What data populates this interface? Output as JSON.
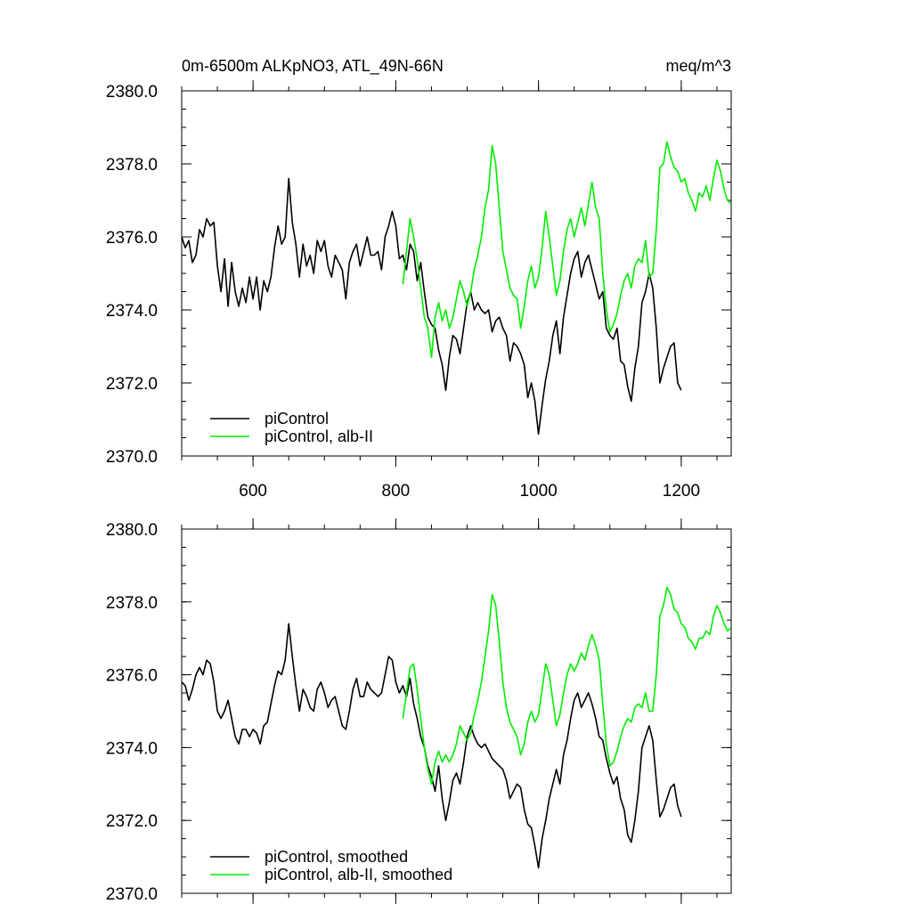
{
  "figure": {
    "title_left": "0m-6500m ALKpNO3, ATL_49N-66N",
    "title_right": "meq/m^3"
  },
  "colors": {
    "control": "#000000",
    "alb": "#00ee00"
  },
  "chart_data": [
    {
      "type": "line",
      "title": "0m-6500m ALKpNO3, ATL_49N-66N",
      "units": "meq/m^3",
      "xlim": [
        500,
        1270
      ],
      "ylim": [
        2370.0,
        2380.0
      ],
      "x_ticks": [
        600,
        800,
        1000,
        1200
      ],
      "x_tick_labels": [
        "600",
        "800",
        "1000",
        "1200"
      ],
      "y_ticks": [
        2370.0,
        2372.0,
        2374.0,
        2376.0,
        2378.0,
        2380.0
      ],
      "y_tick_labels": [
        "2370.0",
        "2372.0",
        "2374.0",
        "2376.0",
        "2378.0",
        "2380.0"
      ],
      "grid": false,
      "legend_position": "bottom-left",
      "series": [
        {
          "name": "piControl",
          "color": "#000000",
          "x": [
            500,
            505,
            510,
            515,
            520,
            525,
            530,
            535,
            540,
            545,
            550,
            555,
            560,
            565,
            570,
            575,
            580,
            585,
            590,
            595,
            600,
            605,
            610,
            615,
            620,
            625,
            630,
            635,
            640,
            645,
            650,
            655,
            660,
            665,
            670,
            675,
            680,
            685,
            690,
            695,
            700,
            705,
            710,
            715,
            720,
            725,
            730,
            735,
            740,
            745,
            750,
            755,
            760,
            765,
            770,
            775,
            780,
            785,
            790,
            795,
            800,
            805,
            810,
            815,
            820,
            825,
            830,
            835,
            840,
            845,
            850,
            855,
            860,
            865,
            870,
            875,
            880,
            885,
            890,
            895,
            900,
            905,
            910,
            915,
            920,
            925,
            930,
            935,
            940,
            945,
            950,
            955,
            960,
            965,
            970,
            975,
            980,
            985,
            990,
            995,
            1000,
            1005,
            1010,
            1015,
            1020,
            1025,
            1030,
            1035,
            1040,
            1045,
            1050,
            1055,
            1060,
            1065,
            1070,
            1075,
            1080,
            1085,
            1090,
            1095,
            1100,
            1105,
            1110,
            1115,
            1120,
            1125,
            1130,
            1135,
            1140,
            1145,
            1150,
            1155,
            1160,
            1165,
            1170,
            1175,
            1180,
            1185,
            1190,
            1195,
            1200
          ],
          "y": [
            2376.0,
            2375.7,
            2375.9,
            2375.3,
            2375.5,
            2376.2,
            2376.0,
            2376.5,
            2376.3,
            2376.4,
            2375.2,
            2374.5,
            2375.4,
            2374.1,
            2375.3,
            2374.5,
            2374.1,
            2374.6,
            2374.2,
            2374.9,
            2374.3,
            2374.9,
            2374.0,
            2374.8,
            2374.5,
            2374.9,
            2375.7,
            2376.3,
            2375.8,
            2376.0,
            2377.6,
            2376.4,
            2375.8,
            2374.9,
            2375.8,
            2375.2,
            2375.5,
            2375.0,
            2375.9,
            2375.6,
            2375.9,
            2375.2,
            2374.9,
            2375.5,
            2375.3,
            2375.1,
            2374.3,
            2375.3,
            2375.6,
            2375.8,
            2375.2,
            2375.6,
            2376.0,
            2375.5,
            2375.5,
            2375.6,
            2375.1,
            2376.0,
            2376.3,
            2376.7,
            2376.3,
            2375.4,
            2375.5,
            2375.1,
            2375.8,
            2375.6,
            2374.8,
            2375.3,
            2374.5,
            2373.8,
            2373.6,
            2373.5,
            2372.9,
            2372.5,
            2371.8,
            2372.7,
            2373.3,
            2373.2,
            2372.8,
            2373.5,
            2374.2,
            2374.5,
            2374.0,
            2374.2,
            2374.0,
            2373.9,
            2374.0,
            2373.4,
            2373.7,
            2373.8,
            2373.5,
            2373.3,
            2372.6,
            2373.1,
            2373.0,
            2372.8,
            2372.5,
            2371.6,
            2372.0,
            2371.5,
            2370.6,
            2371.4,
            2372.1,
            2372.6,
            2373.3,
            2373.7,
            2372.8,
            2373.8,
            2374.4,
            2375.0,
            2375.4,
            2375.6,
            2374.9,
            2375.3,
            2375.5,
            2375.1,
            2374.7,
            2374.3,
            2374.5,
            2373.5,
            2373.3,
            2373.2,
            2373.5,
            2372.6,
            2372.5,
            2371.9,
            2371.5,
            2372.4,
            2373.0,
            2374.2,
            2374.5,
            2375.0,
            2374.6,
            2373.5,
            2372.0,
            2372.4,
            2372.7,
            2373.0,
            2373.1,
            2372.0,
            2371.8
          ]
        },
        {
          "name": "piControl, alb-II",
          "color": "#00ee00",
          "x": [
            810,
            815,
            820,
            825,
            830,
            835,
            840,
            845,
            850,
            855,
            860,
            865,
            870,
            875,
            880,
            885,
            890,
            895,
            900,
            905,
            910,
            915,
            920,
            925,
            930,
            935,
            940,
            945,
            950,
            955,
            960,
            965,
            970,
            975,
            980,
            985,
            990,
            995,
            1000,
            1005,
            1010,
            1015,
            1020,
            1025,
            1030,
            1035,
            1040,
            1045,
            1050,
            1055,
            1060,
            1065,
            1070,
            1075,
            1080,
            1085,
            1090,
            1095,
            1100,
            1105,
            1110,
            1115,
            1120,
            1125,
            1130,
            1135,
            1140,
            1145,
            1150,
            1155,
            1160,
            1165,
            1170,
            1175,
            1180,
            1185,
            1190,
            1195,
            1200,
            1205,
            1210,
            1215,
            1220,
            1225,
            1230,
            1235,
            1240,
            1245,
            1250,
            1255,
            1260,
            1265,
            1270
          ],
          "y": [
            2374.7,
            2375.6,
            2376.5,
            2376.0,
            2375.4,
            2374.6,
            2373.8,
            2373.5,
            2372.7,
            2373.8,
            2374.2,
            2373.7,
            2374.0,
            2373.5,
            2373.8,
            2374.3,
            2374.8,
            2374.5,
            2374.1,
            2374.5,
            2375.1,
            2375.5,
            2376.0,
            2376.8,
            2377.3,
            2378.5,
            2378.0,
            2376.8,
            2375.6,
            2375.1,
            2374.6,
            2374.4,
            2374.3,
            2373.5,
            2374.1,
            2374.8,
            2375.2,
            2374.6,
            2374.9,
            2375.7,
            2376.7,
            2376.0,
            2375.2,
            2374.4,
            2374.8,
            2375.6,
            2376.2,
            2376.5,
            2376.0,
            2376.4,
            2376.8,
            2376.3,
            2376.9,
            2377.5,
            2376.8,
            2376.5,
            2375.0,
            2374.0,
            2373.4,
            2373.6,
            2373.9,
            2374.4,
            2374.8,
            2375.0,
            2374.6,
            2375.2,
            2375.4,
            2375.3,
            2375.9,
            2374.9,
            2375.0,
            2376.2,
            2377.9,
            2378.0,
            2378.6,
            2378.2,
            2377.9,
            2377.8,
            2377.5,
            2377.6,
            2377.2,
            2377.0,
            2376.7,
            2377.2,
            2377.1,
            2377.4,
            2377.0,
            2377.6,
            2378.1,
            2377.8,
            2377.3,
            2377.0,
            2376.9
          ]
        }
      ]
    },
    {
      "type": "line",
      "xlim": [
        500,
        1270
      ],
      "ylim": [
        2370.0,
        2380.0
      ],
      "x_ticks": [
        600,
        800,
        1000,
        1200
      ],
      "y_ticks": [
        2370.0,
        2372.0,
        2374.0,
        2376.0,
        2378.0,
        2380.0
      ],
      "y_tick_labels": [
        "2370.0",
        "2372.0",
        "2374.0",
        "2376.0",
        "2378.0",
        "2380.0"
      ],
      "grid": false,
      "legend_position": "bottom-left",
      "series": [
        {
          "name": "piControl, smoothed",
          "color": "#000000",
          "x": [
            500,
            505,
            510,
            515,
            520,
            525,
            530,
            535,
            540,
            545,
            550,
            555,
            560,
            565,
            570,
            575,
            580,
            585,
            590,
            595,
            600,
            605,
            610,
            615,
            620,
            625,
            630,
            635,
            640,
            645,
            650,
            655,
            660,
            665,
            670,
            675,
            680,
            685,
            690,
            695,
            700,
            705,
            710,
            715,
            720,
            725,
            730,
            735,
            740,
            745,
            750,
            755,
            760,
            765,
            770,
            775,
            780,
            785,
            790,
            795,
            800,
            805,
            810,
            815,
            820,
            825,
            830,
            835,
            840,
            845,
            850,
            855,
            860,
            865,
            870,
            875,
            880,
            885,
            890,
            895,
            900,
            905,
            910,
            915,
            920,
            925,
            930,
            935,
            940,
            945,
            950,
            955,
            960,
            965,
            970,
            975,
            980,
            985,
            990,
            995,
            1000,
            1005,
            1010,
            1015,
            1020,
            1025,
            1030,
            1035,
            1040,
            1045,
            1050,
            1055,
            1060,
            1065,
            1070,
            1075,
            1080,
            1085,
            1090,
            1095,
            1100,
            1105,
            1110,
            1115,
            1120,
            1125,
            1130,
            1135,
            1140,
            1145,
            1150,
            1155,
            1160,
            1165,
            1170,
            1175,
            1180,
            1185,
            1190,
            1195,
            1200
          ],
          "y": [
            2375.8,
            2375.7,
            2375.3,
            2375.6,
            2376.0,
            2376.2,
            2376.0,
            2376.4,
            2376.3,
            2375.8,
            2375.0,
            2374.8,
            2375.0,
            2375.3,
            2374.8,
            2374.3,
            2374.1,
            2374.5,
            2374.5,
            2374.3,
            2374.5,
            2374.4,
            2374.1,
            2374.6,
            2374.7,
            2375.2,
            2375.7,
            2376.1,
            2376.0,
            2376.4,
            2377.4,
            2376.5,
            2375.7,
            2375.0,
            2375.6,
            2375.4,
            2375.1,
            2375.0,
            2375.6,
            2375.8,
            2375.5,
            2375.1,
            2375.3,
            2375.4,
            2375.0,
            2374.6,
            2374.5,
            2375.0,
            2375.6,
            2375.9,
            2375.4,
            2375.4,
            2375.8,
            2375.6,
            2375.5,
            2375.4,
            2375.5,
            2376.0,
            2376.5,
            2376.4,
            2375.8,
            2375.5,
            2375.7,
            2375.4,
            2375.9,
            2375.2,
            2374.8,
            2374.3,
            2374.0,
            2373.5,
            2373.2,
            2372.8,
            2373.5,
            2372.6,
            2372.0,
            2372.5,
            2373.1,
            2373.3,
            2373.0,
            2373.6,
            2374.3,
            2374.6,
            2374.3,
            2374.1,
            2374.0,
            2374.1,
            2373.9,
            2373.7,
            2373.6,
            2373.5,
            2373.4,
            2373.1,
            2372.6,
            2372.8,
            2373.0,
            2372.9,
            2372.3,
            2371.9,
            2371.8,
            2371.3,
            2370.7,
            2371.5,
            2372.0,
            2372.6,
            2373.0,
            2373.4,
            2373.0,
            2373.8,
            2374.2,
            2374.8,
            2375.3,
            2375.5,
            2375.1,
            2375.3,
            2375.5,
            2375.2,
            2374.8,
            2374.3,
            2374.2,
            2373.7,
            2373.3,
            2373.0,
            2373.2,
            2372.6,
            2372.3,
            2371.6,
            2371.4,
            2372.0,
            2372.8,
            2374.0,
            2374.3,
            2374.6,
            2374.2,
            2373.1,
            2372.1,
            2372.3,
            2372.6,
            2372.9,
            2373.0,
            2372.4,
            2372.1
          ]
        },
        {
          "name": "piControl, alb-II, smoothed",
          "color": "#00ee00",
          "x": [
            810,
            815,
            820,
            825,
            830,
            835,
            840,
            845,
            850,
            855,
            860,
            865,
            870,
            875,
            880,
            885,
            890,
            895,
            900,
            905,
            910,
            915,
            920,
            925,
            930,
            935,
            940,
            945,
            950,
            955,
            960,
            965,
            970,
            975,
            980,
            985,
            990,
            995,
            1000,
            1005,
            1010,
            1015,
            1020,
            1025,
            1030,
            1035,
            1040,
            1045,
            1050,
            1055,
            1060,
            1065,
            1070,
            1075,
            1080,
            1085,
            1090,
            1095,
            1100,
            1105,
            1110,
            1115,
            1120,
            1125,
            1130,
            1135,
            1140,
            1145,
            1150,
            1155,
            1160,
            1165,
            1170,
            1175,
            1180,
            1185,
            1190,
            1195,
            1200,
            1205,
            1210,
            1215,
            1220,
            1225,
            1230,
            1235,
            1240,
            1245,
            1250,
            1255,
            1260,
            1265,
            1270
          ],
          "y": [
            2374.8,
            2375.5,
            2376.2,
            2376.3,
            2375.6,
            2374.8,
            2374.0,
            2373.4,
            2373.0,
            2373.6,
            2373.9,
            2373.6,
            2373.8,
            2373.6,
            2373.8,
            2374.1,
            2374.6,
            2374.4,
            2374.2,
            2374.4,
            2374.9,
            2375.3,
            2375.8,
            2376.5,
            2377.2,
            2378.2,
            2377.9,
            2376.9,
            2375.8,
            2375.1,
            2374.7,
            2374.5,
            2374.3,
            2373.8,
            2374.1,
            2374.7,
            2375.0,
            2374.7,
            2374.9,
            2375.6,
            2376.3,
            2376.0,
            2375.3,
            2374.6,
            2374.9,
            2375.5,
            2376.0,
            2376.3,
            2376.1,
            2376.3,
            2376.6,
            2376.4,
            2376.8,
            2377.1,
            2376.8,
            2376.4,
            2375.2,
            2374.1,
            2373.5,
            2373.6,
            2373.9,
            2374.3,
            2374.6,
            2374.8,
            2374.7,
            2375.1,
            2375.2,
            2375.1,
            2375.5,
            2375.0,
            2375.0,
            2376.0,
            2377.6,
            2377.9,
            2378.4,
            2378.2,
            2377.8,
            2377.7,
            2377.4,
            2377.3,
            2377.0,
            2376.9,
            2376.7,
            2377.0,
            2377.0,
            2377.2,
            2377.1,
            2377.6,
            2377.9,
            2377.7,
            2377.4,
            2377.2,
            2377.3
          ]
        }
      ]
    }
  ]
}
